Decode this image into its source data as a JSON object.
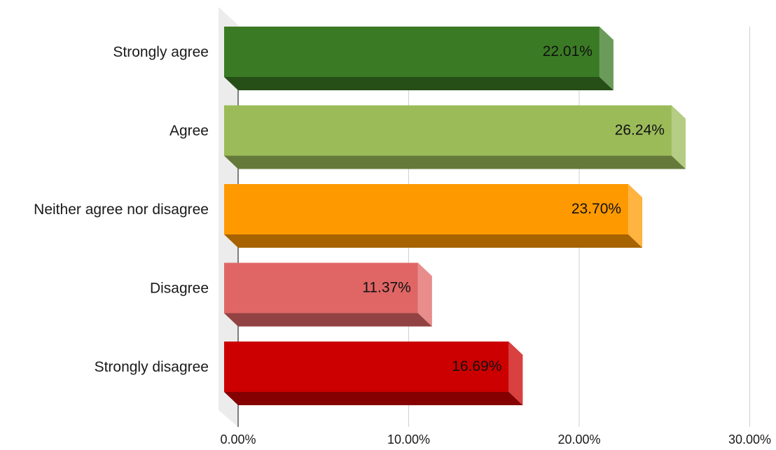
{
  "chart_data": {
    "type": "bar",
    "orientation": "horizontal",
    "style": "3d",
    "title": "",
    "xlabel": "",
    "ylabel": "",
    "xlim": [
      0,
      30
    ],
    "x_ticks": [
      0,
      10,
      20,
      30
    ],
    "x_tick_labels": [
      "0.00%",
      "10.00%",
      "20.00%",
      "30.00%"
    ],
    "grid": "vertical",
    "legend": "none",
    "categories": [
      "Strongly agree",
      "Agree",
      "Neither agree nor disagree",
      "Disagree",
      "Strongly disagree"
    ],
    "values": [
      22.01,
      26.24,
      23.7,
      11.37,
      16.69
    ],
    "data_labels": [
      "22.01%",
      "26.24%",
      "23.70%",
      "11.37%",
      "16.69%"
    ],
    "colors": [
      "#3a7a24",
      "#9bbb59",
      "#ff9900",
      "#e06666",
      "#cc0000"
    ]
  }
}
